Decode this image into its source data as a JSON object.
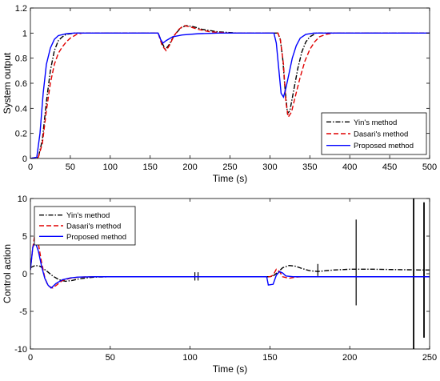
{
  "chart_data": [
    {
      "type": "line",
      "xlabel": "Time (s)",
      "ylabel": "System output",
      "xlim": [
        0,
        500
      ],
      "ylim": [
        0,
        1.2
      ],
      "xticks": [
        0,
        50,
        100,
        150,
        200,
        250,
        300,
        350,
        400,
        450,
        500
      ],
      "yticks": [
        0,
        0.2,
        0.4,
        0.6,
        0.8,
        1,
        1.2
      ],
      "legend_position": "bottom-right",
      "grid": false,
      "series": [
        {
          "name": "Yin's method",
          "color": "#000000",
          "dash": "dashdot",
          "points": [
            [
              0,
              0
            ],
            [
              10,
              0.01
            ],
            [
              15,
              0.15
            ],
            [
              20,
              0.45
            ],
            [
              25,
              0.7
            ],
            [
              30,
              0.86
            ],
            [
              35,
              0.94
            ],
            [
              40,
              0.97
            ],
            [
              45,
              0.99
            ],
            [
              55,
              1
            ],
            [
              160,
              1
            ],
            [
              165,
              0.92
            ],
            [
              169,
              0.87
            ],
            [
              173,
              0.9
            ],
            [
              180,
              0.98
            ],
            [
              188,
              1.04
            ],
            [
              195,
              1.06
            ],
            [
              205,
              1.05
            ],
            [
              215,
              1.03
            ],
            [
              235,
              1.01
            ],
            [
              260,
              1
            ],
            [
              310,
              1
            ],
            [
              313,
              0.95
            ],
            [
              316,
              0.8
            ],
            [
              319,
              0.55
            ],
            [
              322,
              0.36
            ],
            [
              325,
              0.38
            ],
            [
              330,
              0.55
            ],
            [
              335,
              0.72
            ],
            [
              340,
              0.85
            ],
            [
              345,
              0.93
            ],
            [
              350,
              0.97
            ],
            [
              358,
              1.0
            ],
            [
              500,
              1
            ]
          ]
        },
        {
          "name": "Dasari's method",
          "color": "#e00000",
          "dash": "dashed",
          "points": [
            [
              0,
              0
            ],
            [
              10,
              0.01
            ],
            [
              15,
              0.12
            ],
            [
              20,
              0.38
            ],
            [
              25,
              0.6
            ],
            [
              30,
              0.75
            ],
            [
              35,
              0.84
            ],
            [
              40,
              0.89
            ],
            [
              45,
              0.93
            ],
            [
              50,
              0.96
            ],
            [
              58,
              0.99
            ],
            [
              65,
              1
            ],
            [
              160,
              1
            ],
            [
              165,
              0.9
            ],
            [
              170,
              0.86
            ],
            [
              174,
              0.9
            ],
            [
              180,
              0.98
            ],
            [
              186,
              1.03
            ],
            [
              192,
              1.06
            ],
            [
              200,
              1.05
            ],
            [
              210,
              1.03
            ],
            [
              225,
              1.01
            ],
            [
              250,
              1
            ],
            [
              310,
              1
            ],
            [
              313,
              0.95
            ],
            [
              317,
              0.75
            ],
            [
              320,
              0.45
            ],
            [
              323,
              0.33
            ],
            [
              327,
              0.37
            ],
            [
              332,
              0.5
            ],
            [
              338,
              0.65
            ],
            [
              344,
              0.78
            ],
            [
              350,
              0.87
            ],
            [
              356,
              0.93
            ],
            [
              362,
              0.97
            ],
            [
              370,
              0.99
            ],
            [
              380,
              1
            ],
            [
              500,
              1
            ]
          ]
        },
        {
          "name": "Proposed method",
          "color": "#0000ff",
          "dash": "solid",
          "points": [
            [
              0,
              0
            ],
            [
              8,
              0.01
            ],
            [
              12,
              0.2
            ],
            [
              16,
              0.52
            ],
            [
              20,
              0.75
            ],
            [
              25,
              0.88
            ],
            [
              30,
              0.95
            ],
            [
              35,
              0.98
            ],
            [
              45,
              0.995
            ],
            [
              55,
              1
            ],
            [
              160,
              1
            ],
            [
              163,
              0.95
            ],
            [
              166,
              0.92
            ],
            [
              170,
              0.94
            ],
            [
              178,
              0.97
            ],
            [
              190,
              0.985
            ],
            [
              210,
              0.995
            ],
            [
              235,
              1
            ],
            [
              305,
              1
            ],
            [
              308,
              0.92
            ],
            [
              311,
              0.72
            ],
            [
              314,
              0.52
            ],
            [
              317,
              0.49
            ],
            [
              320,
              0.56
            ],
            [
              324,
              0.68
            ],
            [
              328,
              0.8
            ],
            [
              333,
              0.9
            ],
            [
              338,
              0.96
            ],
            [
              345,
              0.99
            ],
            [
              355,
              1
            ],
            [
              500,
              1
            ]
          ]
        }
      ]
    },
    {
      "type": "line",
      "xlabel": "Time (s)",
      "ylabel": "Control action",
      "xlim": [
        0,
        250
      ],
      "ylim": [
        -10,
        10
      ],
      "xticks": [
        0,
        50,
        100,
        150,
        200,
        250
      ],
      "yticks": [
        -10,
        -5,
        0,
        5,
        10
      ],
      "legend_position": "top-left",
      "grid": false,
      "series": [
        {
          "name": "Yin's method",
          "color": "#000000",
          "dash": "dashdot",
          "points": [
            [
              0,
              0.8
            ],
            [
              3,
              1.1
            ],
            [
              6,
              1.0
            ],
            [
              10,
              0.4
            ],
            [
              14,
              -0.3
            ],
            [
              18,
              -0.8
            ],
            [
              22,
              -1.0
            ],
            [
              26,
              -0.9
            ],
            [
              30,
              -0.7
            ],
            [
              35,
              -0.55
            ],
            [
              40,
              -0.45
            ],
            [
              50,
              -0.4
            ],
            [
              150,
              -0.4
            ],
            [
              152,
              -0.3
            ],
            [
              155,
              0.2
            ],
            [
              158,
              0.8
            ],
            [
              162,
              1.1
            ],
            [
              166,
              1.0
            ],
            [
              170,
              0.7
            ],
            [
              175,
              0.4
            ],
            [
              180,
              0.3
            ],
            [
              185,
              0.4
            ],
            [
              190,
              0.5
            ],
            [
              200,
              0.6
            ],
            [
              215,
              0.6
            ],
            [
              230,
              0.55
            ],
            [
              245,
              0.5
            ],
            [
              250,
              0.5
            ]
          ],
          "spikes": [
            {
              "x": 103,
              "min": -0.9,
              "max": 0.2
            },
            {
              "x": 105,
              "min": -0.9,
              "max": 0.2
            },
            {
              "x": 180,
              "min": -0.3,
              "max": 1.3
            },
            {
              "x": 204,
              "min": -4.2,
              "max": 7.2
            },
            {
              "x": 240,
              "min": -10,
              "max": 10
            },
            {
              "x": 246.5,
              "min": -8.5,
              "max": 9.5
            }
          ]
        },
        {
          "name": "Dasari's method",
          "color": "#e00000",
          "dash": "dashed",
          "points": [
            [
              0,
              0.5
            ],
            [
              1.5,
              3.5
            ],
            [
              3,
              5.5
            ],
            [
              5,
              4.0
            ],
            [
              7,
              1.5
            ],
            [
              9,
              -0.5
            ],
            [
              11,
              -1.6
            ],
            [
              14,
              -1.9
            ],
            [
              17,
              -1.4
            ],
            [
              20,
              -0.9
            ],
            [
              25,
              -0.6
            ],
            [
              30,
              -0.45
            ],
            [
              40,
              -0.4
            ],
            [
              150,
              -0.4
            ],
            [
              152,
              -0.2
            ],
            [
              154,
              0.6
            ],
            [
              156,
              0.3
            ],
            [
              158,
              -0.4
            ],
            [
              162,
              -0.6
            ],
            [
              166,
              -0.45
            ],
            [
              170,
              -0.4
            ],
            [
              250,
              -0.4
            ]
          ]
        },
        {
          "name": "Proposed method",
          "color": "#0000ff",
          "dash": "solid",
          "points": [
            [
              0,
              0.5
            ],
            [
              1.5,
              3.5
            ],
            [
              3,
              4.2
            ],
            [
              5,
              3.0
            ],
            [
              7,
              1.0
            ],
            [
              9,
              -0.6
            ],
            [
              11,
              -1.5
            ],
            [
              13,
              -1.9
            ],
            [
              16,
              -1.3
            ],
            [
              20,
              -0.8
            ],
            [
              25,
              -0.55
            ],
            [
              30,
              -0.45
            ],
            [
              40,
              -0.4
            ],
            [
              148,
              -0.4
            ],
            [
              149,
              -1.5
            ],
            [
              152,
              -1.4
            ],
            [
              154,
              -0.2
            ],
            [
              156,
              0.3
            ],
            [
              158,
              0.1
            ],
            [
              160,
              -0.3
            ],
            [
              165,
              -0.4
            ],
            [
              250,
              -0.4
            ]
          ]
        }
      ]
    }
  ]
}
